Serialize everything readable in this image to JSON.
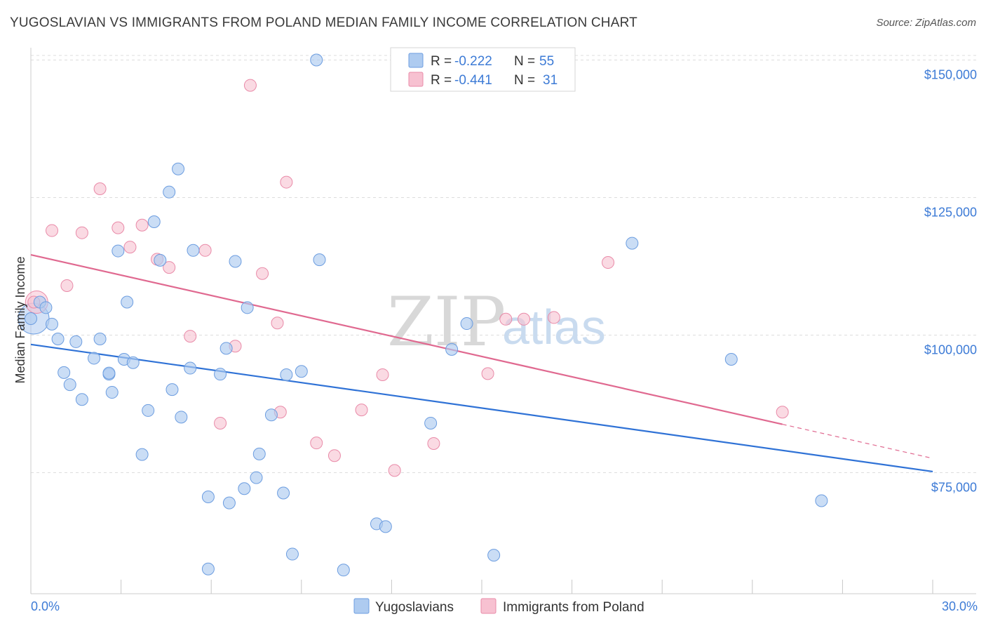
{
  "title": "YUGOSLAVIAN VS IMMIGRANTS FROM POLAND MEDIAN FAMILY INCOME CORRELATION CHART",
  "source": "Source: ZipAtlas.com",
  "watermark": {
    "zip": "ZIP",
    "atlas": "atlas"
  },
  "legend": {
    "rows": [
      {
        "r_label": "R = ",
        "r_value": "-0.222",
        "n_label": "N = ",
        "n_value": "55"
      },
      {
        "r_label": "R = ",
        "r_value": "-0.441",
        "n_label": "N = ",
        "n_value": "31"
      }
    ]
  },
  "colors": {
    "yugoslavians_fill": "#aecbf0",
    "yugoslavians_stroke": "#6c9de0",
    "yugoslavians_line": "#2f72d6",
    "poland_fill": "#f7c1d1",
    "poland_stroke": "#e98aa8",
    "poland_line": "#e06990",
    "axis_text": "#3d7bd6",
    "grid": "#dddddd"
  },
  "chart_data": {
    "type": "scatter",
    "title": "YUGOSLAVIAN VS IMMIGRANTS FROM POLAND MEDIAN FAMILY INCOME CORRELATION CHART",
    "xlabel": "",
    "ylabel": "Median Family Income",
    "xlim": [
      0,
      30
    ],
    "ylim": [
      53000,
      153000
    ],
    "x_tick_labels": [
      "0.0%",
      "30.0%"
    ],
    "y_ticks": [
      75000,
      100000,
      125000,
      150000
    ],
    "y_tick_labels": [
      "$75,000",
      "$100,000",
      "$125,000",
      "$150,000"
    ],
    "grid": true,
    "legend_position": "top-center",
    "series": [
      {
        "name": "Yugoslavians",
        "trend": {
          "x0": 0,
          "y0": 98300,
          "x1": 30,
          "y1": 75200
        },
        "points": [
          [
            0.0,
            103000
          ],
          [
            0.3,
            106000
          ],
          [
            0.5,
            105000
          ],
          [
            0.7,
            102000
          ],
          [
            0.9,
            99300
          ],
          [
            1.1,
            93200
          ],
          [
            1.3,
            91000
          ],
          [
            1.5,
            98800
          ],
          [
            1.7,
            88300
          ],
          [
            2.1,
            95800
          ],
          [
            2.3,
            99300
          ],
          [
            2.6,
            92900
          ],
          [
            2.6,
            93100
          ],
          [
            2.7,
            89600
          ],
          [
            2.9,
            115300
          ],
          [
            3.1,
            95600
          ],
          [
            3.2,
            106000
          ],
          [
            3.4,
            95000
          ],
          [
            3.7,
            78300
          ],
          [
            3.9,
            86300
          ],
          [
            4.1,
            120600
          ],
          [
            4.3,
            113600
          ],
          [
            4.6,
            126000
          ],
          [
            4.7,
            90100
          ],
          [
            4.9,
            130200
          ],
          [
            5.0,
            85100
          ],
          [
            5.3,
            94000
          ],
          [
            5.4,
            115400
          ],
          [
            5.9,
            70600
          ],
          [
            5.9,
            57500
          ],
          [
            6.3,
            92900
          ],
          [
            6.5,
            97600
          ],
          [
            6.6,
            69500
          ],
          [
            6.8,
            113400
          ],
          [
            7.1,
            72100
          ],
          [
            7.2,
            105000
          ],
          [
            7.5,
            74100
          ],
          [
            7.6,
            78400
          ],
          [
            8.0,
            85500
          ],
          [
            8.4,
            71300
          ],
          [
            8.5,
            92800
          ],
          [
            8.7,
            60200
          ],
          [
            9.0,
            93400
          ],
          [
            9.5,
            150000
          ],
          [
            9.6,
            113700
          ],
          [
            10.4,
            57300
          ],
          [
            11.5,
            65700
          ],
          [
            11.8,
            65200
          ],
          [
            13.3,
            84000
          ],
          [
            14.0,
            97400
          ],
          [
            14.5,
            102100
          ],
          [
            15.4,
            60000
          ],
          [
            20.0,
            116700
          ],
          [
            23.3,
            95600
          ],
          [
            26.3,
            69900
          ]
        ]
      },
      {
        "name": "Immigrants from Poland",
        "trend": {
          "x0": 0,
          "y0": 114600,
          "x1": 25,
          "y1": 83800,
          "dashed_to_x": 30,
          "dashed_to_y": 77600
        },
        "points": [
          [
            0.1,
            106000
          ],
          [
            0.7,
            119000
          ],
          [
            1.2,
            109000
          ],
          [
            1.7,
            118600
          ],
          [
            2.3,
            126600
          ],
          [
            2.9,
            119500
          ],
          [
            3.3,
            116000
          ],
          [
            3.7,
            120000
          ],
          [
            4.2,
            113800
          ],
          [
            4.6,
            112300
          ],
          [
            5.3,
            99800
          ],
          [
            5.8,
            115400
          ],
          [
            6.3,
            84000
          ],
          [
            6.8,
            98000
          ],
          [
            7.3,
            145400
          ],
          [
            7.7,
            111200
          ],
          [
            8.2,
            102200
          ],
          [
            8.3,
            86000
          ],
          [
            8.5,
            127800
          ],
          [
            9.5,
            80400
          ],
          [
            10.1,
            78100
          ],
          [
            11.0,
            86400
          ],
          [
            11.7,
            92800
          ],
          [
            12.1,
            75400
          ],
          [
            13.4,
            80300
          ],
          [
            15.2,
            93000
          ],
          [
            15.8,
            102900
          ],
          [
            16.4,
            102900
          ],
          [
            17.4,
            103200
          ],
          [
            19.2,
            113200
          ],
          [
            25.0,
            86000
          ]
        ]
      }
    ]
  }
}
